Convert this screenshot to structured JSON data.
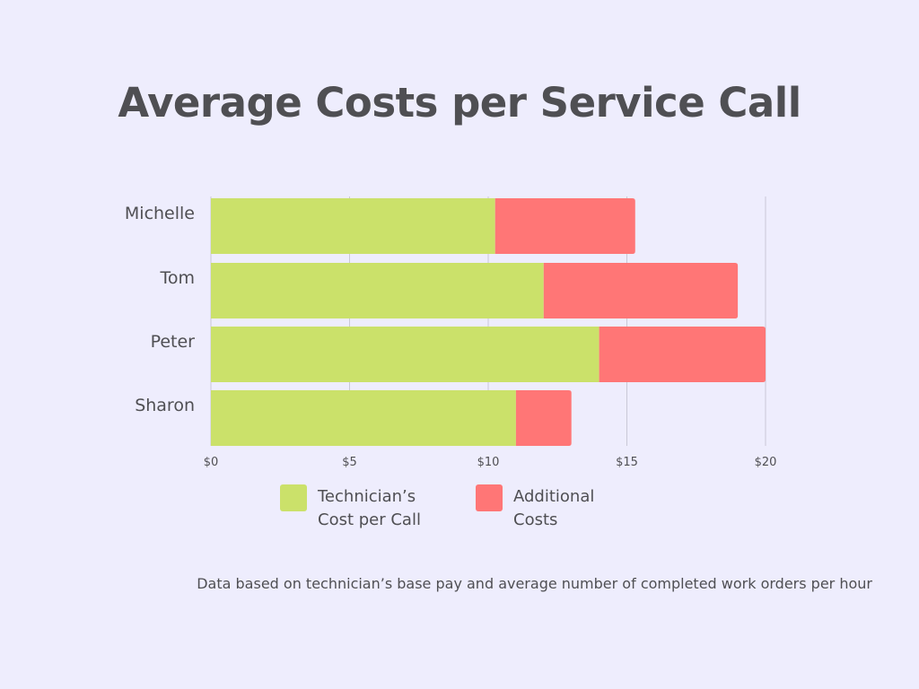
{
  "chart_data": {
    "type": "bar",
    "orientation": "horizontal",
    "stacked": true,
    "title": "Average Costs per Service Call",
    "categories": [
      "Michelle",
      "Tom",
      "Peter",
      "Sharon"
    ],
    "series": [
      {
        "name": "Technician’s Cost per Call",
        "color": "#CBE16A",
        "values": [
          10.25,
          12,
          14,
          11
        ]
      },
      {
        "name": "Additional Costs",
        "color": "#FF7676",
        "values": [
          5.05,
          7,
          6,
          2
        ]
      }
    ],
    "xticks": [
      "$0",
      "$5",
      "$10",
      "$15",
      "$20"
    ],
    "xlim": [
      0,
      20
    ],
    "grid": true,
    "legend_position": "bottom",
    "footnote": "Data based on technician’s base pay and average number of completed work orders per hour"
  }
}
